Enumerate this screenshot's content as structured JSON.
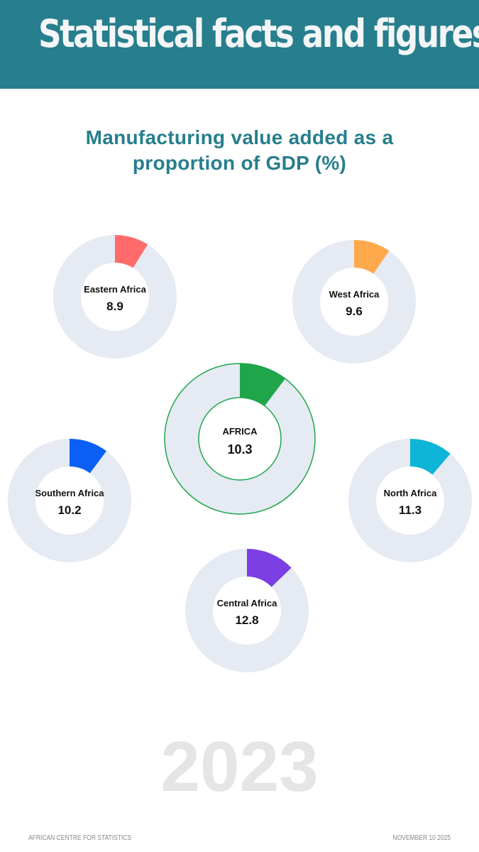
{
  "header": {
    "title": "Statistical facts and figures"
  },
  "chart_data": {
    "type": "donut",
    "title_line1": "Manufacturing value added as a",
    "title_line2": "proportion of GDP (%)",
    "unit": "%",
    "max_value": 100,
    "year": "2023",
    "ring_color": "#E5EAF3",
    "regions": [
      {
        "key": "eastern",
        "name": "Eastern Africa",
        "value": 8.9,
        "display": "8.9",
        "color": "#FF6B6B",
        "highlight": false
      },
      {
        "key": "west",
        "name": "West Africa",
        "value": 9.6,
        "display": "9.6",
        "color": "#FFA94D",
        "highlight": false
      },
      {
        "key": "africa",
        "name": "AFRICA",
        "value": 10.3,
        "display": "10.3",
        "color": "#1FA64B",
        "highlight": true
      },
      {
        "key": "southern",
        "name": "Southern Africa",
        "value": 10.2,
        "display": "10.2",
        "color": "#0B5FF5",
        "highlight": false
      },
      {
        "key": "north",
        "name": "North Africa",
        "value": 11.3,
        "display": "11.3",
        "color": "#0FB5D6",
        "highlight": false
      },
      {
        "key": "central",
        "name": "Central Africa",
        "value": 12.8,
        "display": "12.8",
        "color": "#7B3FE4",
        "highlight": false
      }
    ]
  },
  "footer": {
    "source": "AFRICAN CENTRE FOR STATISTICS",
    "date": "NOVEMBER 10 2025"
  }
}
